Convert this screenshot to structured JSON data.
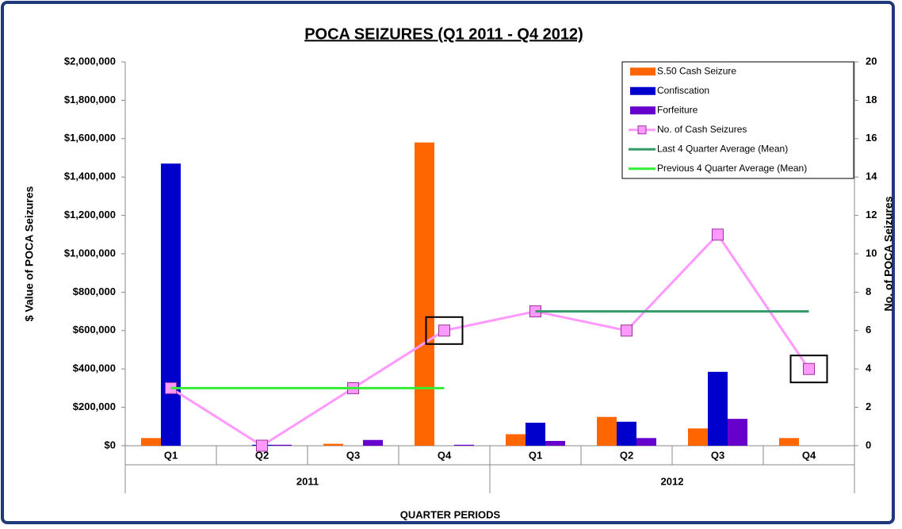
{
  "chart_data": {
    "type": "bar",
    "title": "POCA SEIZURES  (Q1 2011 - Q4 2012)",
    "x_label": "QUARTER PERIODS",
    "y_label": "$ Value of POCA Seizures",
    "y2_label": "No. of POCA Seizures",
    "categories": [
      "Q1",
      "Q2",
      "Q3",
      "Q4",
      "Q1",
      "Q2",
      "Q3",
      "Q4"
    ],
    "groups": [
      "2011",
      "2012"
    ],
    "series": [
      {
        "name": "S.50 Cash Seizure",
        "type": "bar",
        "color": "#ff6600",
        "values": [
          40000,
          0,
          10000,
          1580000,
          60000,
          150000,
          90000,
          40000
        ]
      },
      {
        "name": "Confiscation",
        "type": "bar",
        "color": "#0000cc",
        "values": [
          1470000,
          5000,
          0,
          0,
          120000,
          125000,
          385000,
          0
        ]
      },
      {
        "name": "Forfeiture",
        "type": "bar",
        "color": "#6600cc",
        "values": [
          0,
          5000,
          30000,
          5000,
          25000,
          40000,
          140000,
          0
        ]
      },
      {
        "name": "No. of Cash Seizures",
        "type": "line",
        "axis": "y2",
        "color": "#ff99ff",
        "marker": true,
        "values": [
          3,
          0,
          3,
          6,
          7,
          6,
          11,
          4
        ]
      },
      {
        "name": "Last 4 Quarter Average (Mean)",
        "type": "line",
        "axis": "y2",
        "color": "#339966",
        "values": [
          null,
          null,
          null,
          null,
          7,
          7,
          7,
          7
        ]
      },
      {
        "name": "Previous 4 Quarter Average (Mean)",
        "type": "line",
        "axis": "y2",
        "color": "#33ee33",
        "values": [
          3,
          3,
          3,
          3,
          null,
          null,
          null,
          null
        ]
      }
    ],
    "ylim": [
      0,
      2000000
    ],
    "yticks": [
      {
        "value": 0,
        "label": "$0"
      },
      {
        "value": 200000,
        "label": "$200,000"
      },
      {
        "value": 400000,
        "label": "$400,000"
      },
      {
        "value": 600000,
        "label": "$600,000"
      },
      {
        "value": 800000,
        "label": "$800,000"
      },
      {
        "value": 1000000,
        "label": "$1,000,000"
      },
      {
        "value": 1200000,
        "label": "$1,200,000"
      },
      {
        "value": 1400000,
        "label": "$1,400,000"
      },
      {
        "value": 1600000,
        "label": "$1,600,000"
      },
      {
        "value": 1800000,
        "label": "$1,800,000"
      },
      {
        "value": 2000000,
        "label": "$2,000,000"
      }
    ],
    "y2lim": [
      0,
      20
    ],
    "y2ticks": [
      0,
      2,
      4,
      6,
      8,
      10,
      12,
      14,
      16,
      18,
      20
    ],
    "legend": "upper right",
    "grid": false
  }
}
